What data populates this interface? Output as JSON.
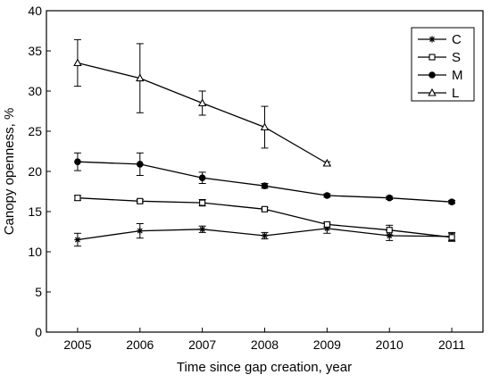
{
  "chart_data": {
    "type": "line",
    "xlabel": "Time since gap creation, year",
    "ylabel": "Canopy openness, %",
    "x": [
      2005,
      2006,
      2007,
      2008,
      2009,
      2010,
      2011
    ],
    "xlim": [
      2004.5,
      2011.5
    ],
    "ylim": [
      0,
      40
    ],
    "yticks": [
      0,
      5,
      10,
      15,
      20,
      25,
      30,
      35,
      40
    ],
    "legend_position": "top-right",
    "grid": false,
    "series": [
      {
        "name": "C",
        "marker": "asterisk",
        "values": [
          11.5,
          12.6,
          12.8,
          12.0,
          12.9,
          12.0,
          11.9
        ],
        "errors": [
          0.8,
          0.9,
          0.4,
          0.4,
          0.6,
          0.6,
          0.5
        ]
      },
      {
        "name": "S",
        "marker": "open-square",
        "values": [
          16.7,
          16.3,
          16.1,
          15.3,
          13.4,
          12.7,
          11.8
        ],
        "errors": [
          0.3,
          0.2,
          0.4,
          0.2,
          0.3,
          0.6,
          0.5
        ]
      },
      {
        "name": "M",
        "marker": "filled-circle",
        "values": [
          21.2,
          20.9,
          19.2,
          18.2,
          17.0,
          16.7,
          16.2
        ],
        "errors": [
          1.1,
          1.4,
          0.7,
          0.3,
          0.2,
          0.2,
          0.2
        ]
      },
      {
        "name": "L",
        "marker": "open-triangle",
        "values": [
          33.5,
          31.6,
          28.5,
          25.5,
          21.0,
          null,
          null
        ],
        "errors": [
          2.9,
          4.3,
          1.5,
          2.6,
          0.2,
          null,
          null
        ]
      }
    ]
  }
}
